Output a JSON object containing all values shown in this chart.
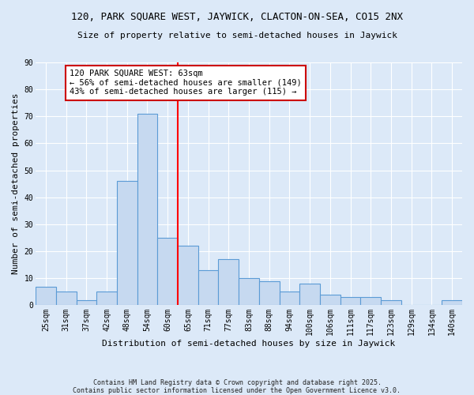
{
  "title": "120, PARK SQUARE WEST, JAYWICK, CLACTON-ON-SEA, CO15 2NX",
  "subtitle": "Size of property relative to semi-detached houses in Jaywick",
  "xlabel": "Distribution of semi-detached houses by size in Jaywick",
  "ylabel": "Number of semi-detached properties",
  "categories": [
    "25sqm",
    "31sqm",
    "37sqm",
    "42sqm",
    "48sqm",
    "54sqm",
    "60sqm",
    "65sqm",
    "71sqm",
    "77sqm",
    "83sqm",
    "88sqm",
    "94sqm",
    "100sqm",
    "106sqm",
    "111sqm",
    "117sqm",
    "123sqm",
    "129sqm",
    "134sqm",
    "140sqm"
  ],
  "values": [
    7,
    5,
    2,
    5,
    46,
    71,
    25,
    22,
    13,
    17,
    10,
    9,
    5,
    8,
    4,
    3,
    3,
    2,
    0,
    0,
    2
  ],
  "bar_color": "#c6d9f0",
  "bar_edge_color": "#5b9bd5",
  "bar_edge_width": 0.8,
  "vline_color": "#ff0000",
  "ylim": [
    0,
    90
  ],
  "yticks": [
    0,
    10,
    20,
    30,
    40,
    50,
    60,
    70,
    80,
    90
  ],
  "background_color": "#dce9f8",
  "grid_color": "#ffffff",
  "annotation_title": "120 PARK SQUARE WEST: 63sqm",
  "annotation_line1": "← 56% of semi-detached houses are smaller (149)",
  "annotation_line2": "43% of semi-detached houses are larger (115) →",
  "annotation_box_color": "#ffffff",
  "annotation_edge_color": "#cc0000",
  "footer_line1": "Contains HM Land Registry data © Crown copyright and database right 2025.",
  "footer_line2": "Contains public sector information licensed under the Open Government Licence v3.0.",
  "title_fontsize": 9,
  "subtitle_fontsize": 8,
  "axis_label_fontsize": 8,
  "tick_fontsize": 7,
  "annotation_fontsize": 7.5,
  "footer_fontsize": 6
}
